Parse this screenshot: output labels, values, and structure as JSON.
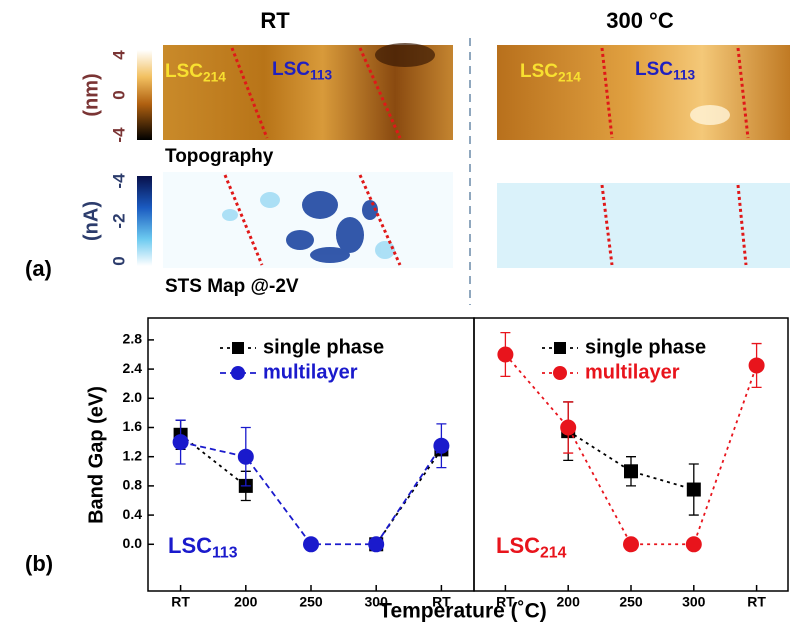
{
  "figure": {
    "columns": [
      "RT",
      "300 °C"
    ],
    "panel_labels": [
      "(a)",
      "(b)"
    ],
    "topography": {
      "unit": "(nm)",
      "ticks": [
        4,
        0,
        -4
      ],
      "caption": "Topography"
    },
    "sts": {
      "unit": "(nA)",
      "ticks": [
        -4,
        -2,
        0
      ],
      "caption": "STS Map @-2V"
    },
    "image_labels": [
      {
        "base": "LSC",
        "sub": "214"
      },
      {
        "base": "LSC",
        "sub": "113"
      },
      {
        "base": "LSC",
        "sub": "214"
      },
      {
        "base": "LSC",
        "sub": "113"
      }
    ],
    "x_label": "Temperature (˚C)",
    "y_label": "Band Gap (eV)"
  },
  "chart_data": [
    {
      "type": "line",
      "categories": [
        "RT",
        "200",
        "250",
        "300",
        "RT"
      ],
      "ylim": [
        -0.64,
        3.1
      ],
      "yticks": [
        {
          "value": 0,
          "label": "0.0"
        },
        0.4,
        0.8,
        1.2,
        1.6,
        {
          "value": 2,
          "label": "2.0"
        },
        2.4,
        2.8
      ],
      "annotation": {
        "base": "LSC",
        "sub": "113",
        "color": "#1a1acc"
      },
      "series": [
        {
          "name": "single phase",
          "color": "#000000",
          "marker": "square",
          "line_style": "dotted",
          "values": [
            1.5,
            0.8,
            null,
            0,
            1.3
          ],
          "errors": [
            0.2,
            0.2,
            null,
            null,
            null
          ]
        },
        {
          "name": "multilayer",
          "color": "#1a1acc",
          "marker": "circle",
          "line_style": "dashed",
          "values": [
            1.4,
            1.2,
            0,
            0,
            1.35
          ],
          "errors": [
            0.3,
            0.4,
            null,
            null,
            0.3
          ]
        }
      ]
    },
    {
      "type": "line",
      "categories": [
        "RT",
        "200",
        "250",
        "300",
        "RT"
      ],
      "ylim": [
        -0.64,
        3.1
      ],
      "annotation": {
        "base": "LSC",
        "sub": "214",
        "color": "#e8141c"
      },
      "series": [
        {
          "name": "single phase",
          "color": "#000000",
          "marker": "square",
          "line_style": "dotted",
          "values": [
            null,
            1.55,
            1.0,
            0.75,
            null
          ],
          "errors": [
            null,
            0.4,
            0.2,
            0.35,
            null
          ]
        },
        {
          "name": "multilayer",
          "color": "#e8141c",
          "marker": "circle",
          "line_style": "dotted",
          "values": [
            2.6,
            1.6,
            0,
            0,
            2.45
          ],
          "errors": [
            0.3,
            0.35,
            null,
            null,
            0.3
          ]
        }
      ]
    }
  ]
}
